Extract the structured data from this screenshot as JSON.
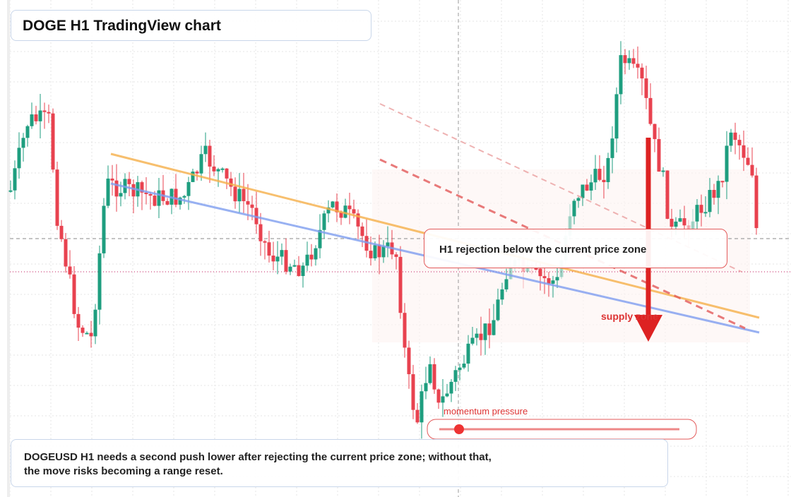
{
  "header": {
    "title": "DOGE H1 TradingView chart"
  },
  "callout": {
    "text": "H1 rejection below the current price zone"
  },
  "labels": {
    "zone": "supply zone",
    "momentum": "momentum pressure"
  },
  "note": {
    "lines": [
      "DOGEUSD H1 needs a second push lower after rejecting the current price zone; without that,",
      "the move risks becoming a range reset."
    ]
  }
}
